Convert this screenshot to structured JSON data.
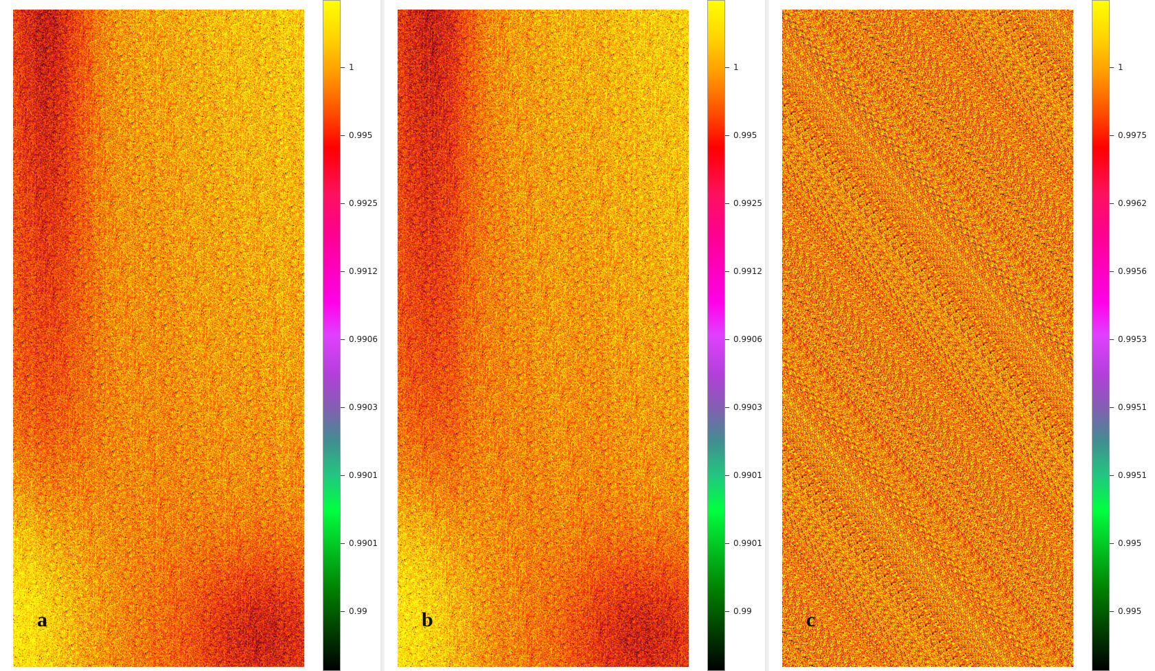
{
  "panels": [
    {
      "label": "a",
      "colorbar_ticks": [
        "1",
        "0.995",
        "0.9925",
        "0.9912",
        "0.9906",
        "0.9903",
        "0.9901",
        "0.9901",
        "0.99"
      ],
      "pattern": "vertical-gradient-red-left-yellow-lower-left"
    },
    {
      "label": "b",
      "colorbar_ticks": [
        "1",
        "0.995",
        "0.9925",
        "0.9912",
        "0.9906",
        "0.9903",
        "0.9901",
        "0.9901",
        "0.99"
      ],
      "pattern": "vertical-gradient-red-left-yellow-lower-left"
    },
    {
      "label": "c",
      "colorbar_ticks": [
        "1",
        "0.9975",
        "0.9962",
        "0.9956",
        "0.9953",
        "0.9951",
        "0.9951",
        "0.995",
        "0.995"
      ],
      "pattern": "uniform-noise"
    }
  ],
  "colors": {
    "yellow": "#ffff00",
    "orange": "#ff9a00",
    "red": "#ff0000",
    "magenta": "#ff00e8",
    "green": "#00ff40",
    "black": "#000000"
  }
}
